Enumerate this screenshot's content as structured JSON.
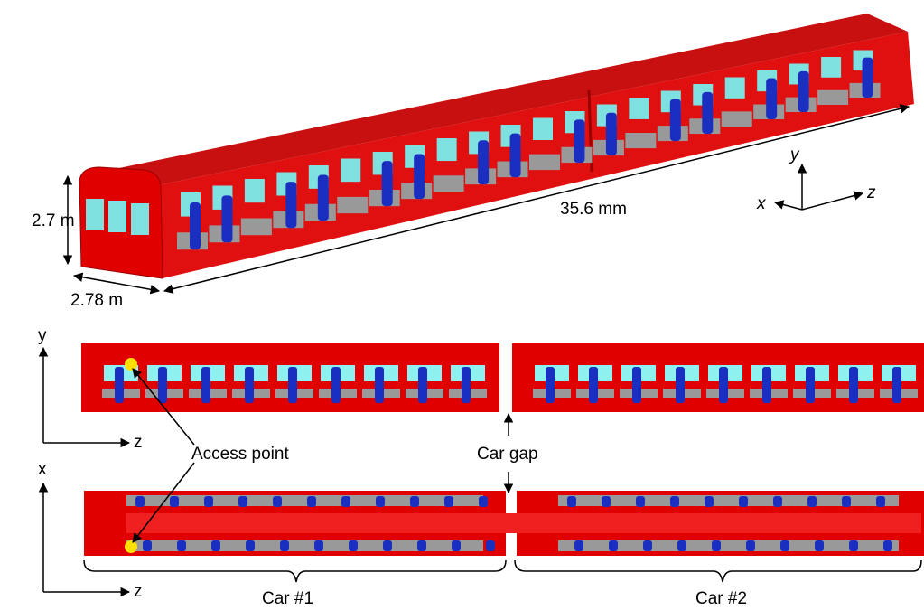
{
  "dimensions": {
    "height": "2.7 m",
    "width": "2.78 m",
    "length": "35.6 mm"
  },
  "axes_3d": {
    "y": "y",
    "x": "x",
    "z": "z"
  },
  "side_view": {
    "vertical_axis": "y",
    "horizontal_axis": "z"
  },
  "top_view": {
    "vertical_axis": "x",
    "horizontal_axis": "z"
  },
  "annotations": {
    "access_point": "Access point",
    "car_gap": "Car gap"
  },
  "cars": [
    "Car #1",
    "Car #2"
  ]
}
